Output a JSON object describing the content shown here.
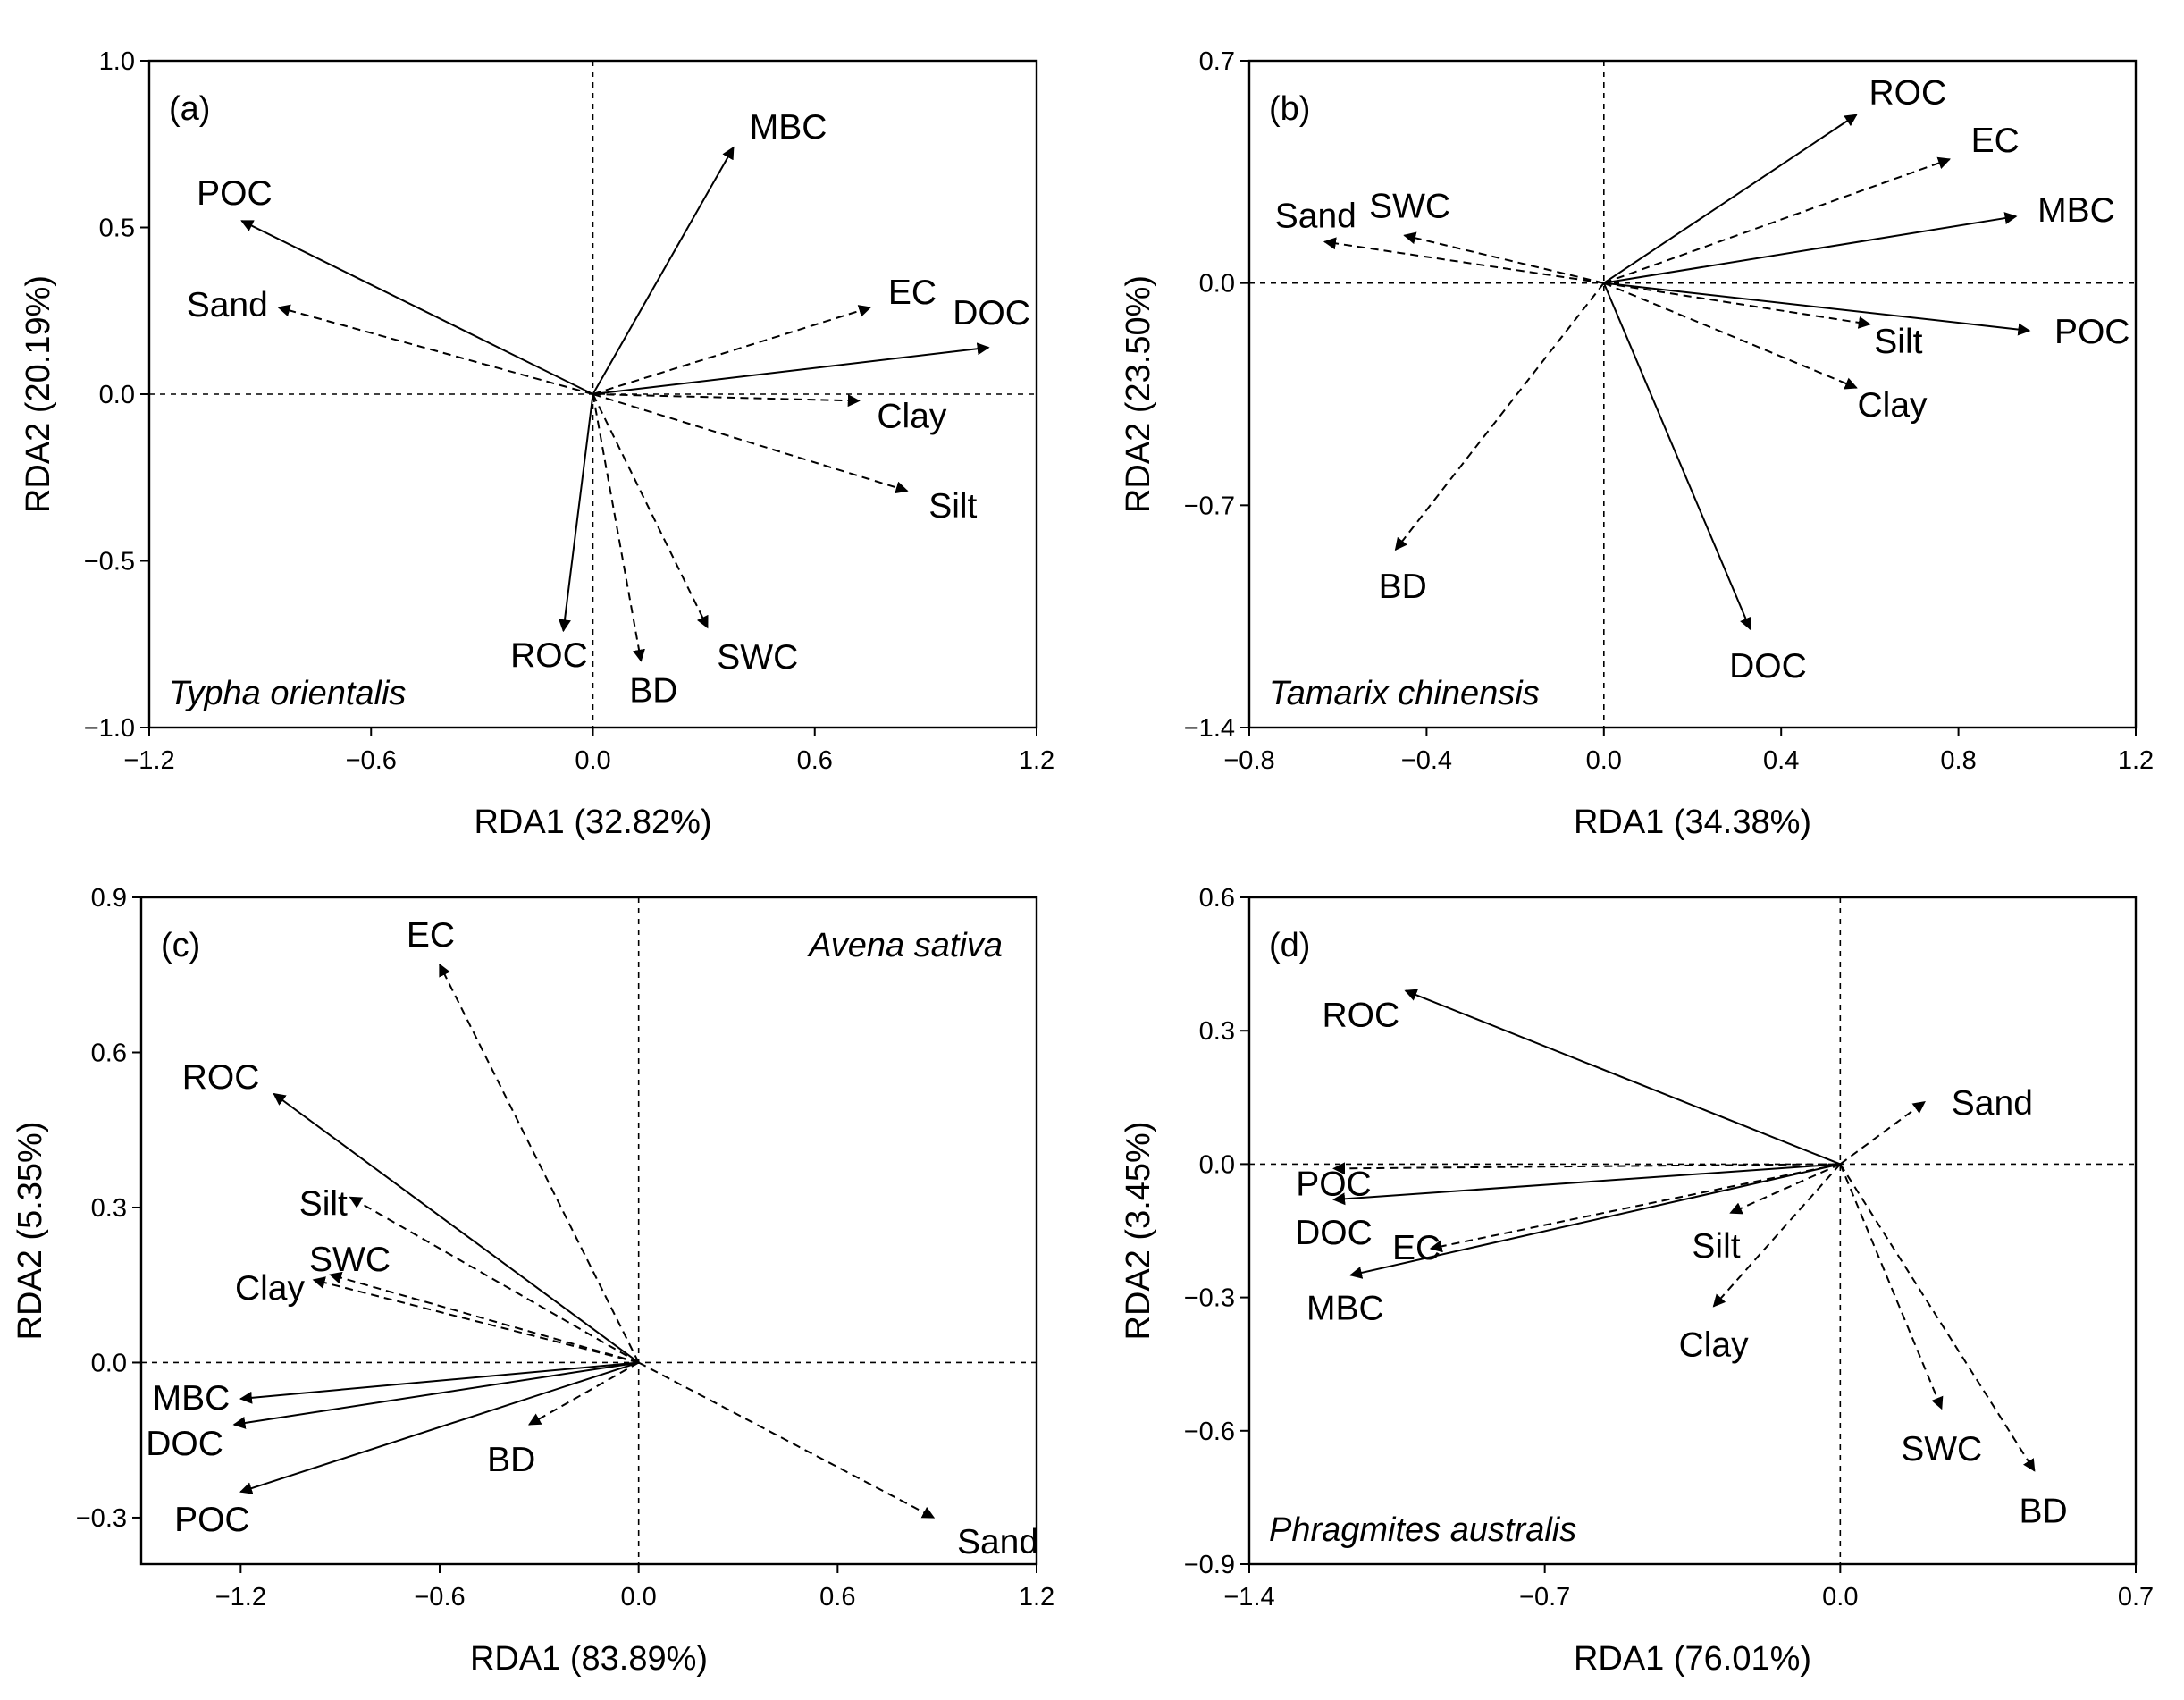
{
  "chart_data": [
    {
      "type": "scatter",
      "subtype": "rda-biplot",
      "panel_label": "(a)",
      "species": "Typha orientalis",
      "xlabel": "RDA1 (32.82%)",
      "ylabel": "RDA2 (20.19%)",
      "xlim": [
        -1.2,
        1.2
      ],
      "ylim": [
        -1.0,
        1.0
      ],
      "xticks": [
        -1.2,
        -0.6,
        0.0,
        0.6,
        1.2
      ],
      "xtick_labels": [
        "−1.2",
        "−0.6",
        "0.0",
        "0.6",
        "1.2"
      ],
      "yticks": [
        -1.0,
        -0.5,
        0.0,
        0.5,
        1.0
      ],
      "ytick_labels": [
        "−1.0",
        "−0.5",
        "0.0",
        "0.5",
        "1.0"
      ],
      "species_position": "bottom-left",
      "series": [
        {
          "name": "MBC",
          "x": 0.38,
          "y": 0.74,
          "line": "solid"
        },
        {
          "name": "POC",
          "x": -0.95,
          "y": 0.52,
          "line": "solid"
        },
        {
          "name": "Sand",
          "x": -0.85,
          "y": 0.26,
          "line": "dashed"
        },
        {
          "name": "EC",
          "x": 0.75,
          "y": 0.26,
          "line": "dashed"
        },
        {
          "name": "DOC",
          "x": 1.07,
          "y": 0.14,
          "line": "solid"
        },
        {
          "name": "Clay",
          "x": 0.72,
          "y": -0.02,
          "line": "dashed"
        },
        {
          "name": "Silt",
          "x": 0.85,
          "y": -0.29,
          "line": "dashed"
        },
        {
          "name": "ROC",
          "x": -0.08,
          "y": -0.71,
          "line": "solid"
        },
        {
          "name": "BD",
          "x": 0.13,
          "y": -0.8,
          "line": "dashed"
        },
        {
          "name": "SWC",
          "x": 0.31,
          "y": -0.7,
          "line": "dashed"
        }
      ]
    },
    {
      "type": "scatter",
      "subtype": "rda-biplot",
      "panel_label": "(b)",
      "species": "Tamarix chinensis",
      "xlabel": "RDA1 (34.38%)",
      "ylabel": "RDA2 (23.50%)",
      "xlim": [
        -0.8,
        1.2
      ],
      "ylim": [
        -1.4,
        0.7
      ],
      "xticks": [
        -0.8,
        -0.4,
        0.0,
        0.4,
        0.8,
        1.2
      ],
      "xtick_labels": [
        "−0.8",
        "−0.4",
        "0.0",
        "0.4",
        "0.8",
        "1.2"
      ],
      "yticks": [
        -1.4,
        -0.7,
        0.0,
        0.7
      ],
      "ytick_labels": [
        "−1.4",
        "−0.7",
        "0.0",
        "0.7"
      ],
      "species_position": "bottom-left",
      "series": [
        {
          "name": "ROC",
          "x": 0.57,
          "y": 0.53,
          "line": "solid"
        },
        {
          "name": "EC",
          "x": 0.78,
          "y": 0.39,
          "line": "dashed"
        },
        {
          "name": "MBC",
          "x": 0.93,
          "y": 0.21,
          "line": "solid"
        },
        {
          "name": "Sand",
          "x": -0.63,
          "y": 0.13,
          "line": "dashed"
        },
        {
          "name": "SWC",
          "x": -0.45,
          "y": 0.15,
          "line": "dashed"
        },
        {
          "name": "Silt",
          "x": 0.6,
          "y": -0.13,
          "line": "dashed"
        },
        {
          "name": "POC",
          "x": 0.96,
          "y": -0.15,
          "line": "solid"
        },
        {
          "name": "Clay",
          "x": 0.57,
          "y": -0.33,
          "line": "dashed"
        },
        {
          "name": "BD",
          "x": -0.47,
          "y": -0.84,
          "line": "dashed"
        },
        {
          "name": "DOC",
          "x": 0.33,
          "y": -1.09,
          "line": "solid"
        }
      ]
    },
    {
      "type": "scatter",
      "subtype": "rda-biplot",
      "panel_label": "(c)",
      "species": "Avena sativa",
      "xlabel": "RDA1 (83.89%)",
      "ylabel": "RDA2 (5.35%)",
      "xlim": [
        -1.5,
        1.2
      ],
      "ylim": [
        -0.39,
        0.9
      ],
      "xticks": [
        -1.2,
        -0.6,
        0.0,
        0.6,
        1.2
      ],
      "xtick_labels": [
        "−1.2",
        "−0.6",
        "0.0",
        "0.6",
        "1.2"
      ],
      "yticks": [
        -0.3,
        0.0,
        0.3,
        0.6,
        0.9
      ],
      "ytick_labels": [
        "−0.3",
        "0.0",
        "0.3",
        "0.6",
        "0.9"
      ],
      "species_position": "top-right",
      "series": [
        {
          "name": "EC",
          "x": -0.6,
          "y": 0.77,
          "line": "dashed"
        },
        {
          "name": "ROC",
          "x": -1.1,
          "y": 0.52,
          "line": "solid"
        },
        {
          "name": "Silt",
          "x": -0.87,
          "y": 0.32,
          "line": "dashed"
        },
        {
          "name": "SWC",
          "x": -0.93,
          "y": 0.17,
          "line": "dashed"
        },
        {
          "name": "Clay",
          "x": -0.98,
          "y": 0.16,
          "line": "dashed"
        },
        {
          "name": "MBC",
          "x": -1.2,
          "y": -0.07,
          "line": "solid"
        },
        {
          "name": "DOC",
          "x": -1.22,
          "y": -0.12,
          "line": "solid"
        },
        {
          "name": "POC",
          "x": -1.2,
          "y": -0.25,
          "line": "solid"
        },
        {
          "name": "BD",
          "x": -0.33,
          "y": -0.12,
          "line": "dashed"
        },
        {
          "name": "Sand",
          "x": 0.89,
          "y": -0.3,
          "line": "dashed"
        }
      ]
    },
    {
      "type": "scatter",
      "subtype": "rda-biplot",
      "panel_label": "(d)",
      "species": "Phragmites australis",
      "xlabel": "RDA1 (76.01%)",
      "ylabel": "RDA2 (3.45%)",
      "xlim": [
        -1.4,
        0.7
      ],
      "ylim": [
        -0.9,
        0.6
      ],
      "xticks": [
        -1.4,
        -0.7,
        0.0,
        0.7
      ],
      "xtick_labels": [
        "−1.4",
        "−0.7",
        "0.0",
        "0.7"
      ],
      "yticks": [
        -0.9,
        -0.6,
        -0.3,
        0.0,
        0.3,
        0.6
      ],
      "ytick_labels": [
        "−0.9",
        "−0.6",
        "−0.3",
        "0.0",
        "0.3",
        "0.6"
      ],
      "species_position": "bottom-left",
      "series": [
        {
          "name": "ROC",
          "x": -1.03,
          "y": 0.39,
          "line": "solid"
        },
        {
          "name": "Sand",
          "x": 0.2,
          "y": 0.14,
          "line": "dashed"
        },
        {
          "name": "POC",
          "x": -1.2,
          "y": -0.01,
          "line": "dashed"
        },
        {
          "name": "DOC",
          "x": -1.2,
          "y": -0.08,
          "line": "solid"
        },
        {
          "name": "EC",
          "x": -0.97,
          "y": -0.19,
          "line": "dashed"
        },
        {
          "name": "MBC",
          "x": -1.16,
          "y": -0.25,
          "line": "solid"
        },
        {
          "name": "Silt",
          "x": -0.26,
          "y": -0.11,
          "line": "dashed"
        },
        {
          "name": "Clay",
          "x": -0.3,
          "y": -0.32,
          "line": "dashed"
        },
        {
          "name": "SWC",
          "x": 0.24,
          "y": -0.55,
          "line": "dashed"
        },
        {
          "name": "BD",
          "x": 0.46,
          "y": -0.69,
          "line": "dashed"
        }
      ]
    }
  ]
}
